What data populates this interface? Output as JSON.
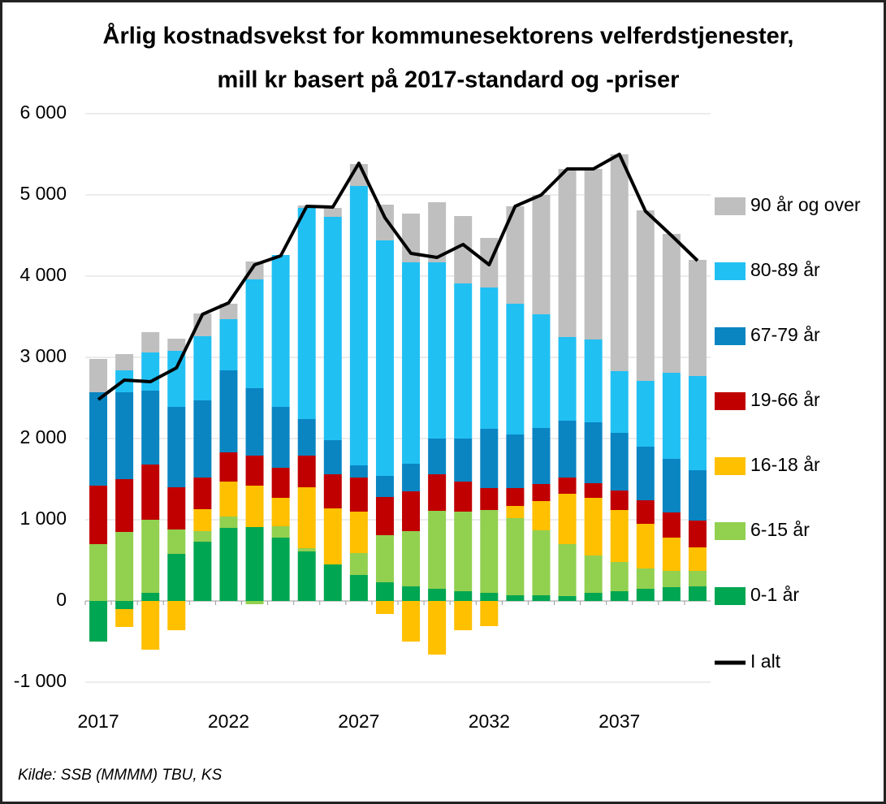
{
  "chart_data": {
    "type": "bar",
    "title": [
      "Årlig kostnadsvekst for kommunesektorens velferdstjenester,",
      "mill kr basert på 2017-standard og -priser"
    ],
    "source": "Kilde: SSB (MMMM) TBU, KS",
    "stacked": true,
    "categories": [
      "2017",
      null,
      null,
      null,
      null,
      "2022",
      null,
      null,
      null,
      null,
      "2027",
      null,
      null,
      null,
      null,
      "2032",
      null,
      null,
      null,
      null,
      "2037",
      null,
      null,
      null
    ],
    "series": [
      {
        "name": "0-1 år",
        "color": "#00a651",
        "values": [
          -500,
          -100,
          100,
          580,
          730,
          900,
          910,
          780,
          610,
          450,
          320,
          230,
          180,
          150,
          120,
          100,
          70,
          70,
          60,
          100,
          120,
          150,
          170,
          180
        ]
      },
      {
        "name": "6-15 år",
        "color": "#92d050",
        "values": [
          700,
          850,
          900,
          300,
          130,
          140,
          -40,
          140,
          40,
          0,
          270,
          580,
          680,
          960,
          980,
          1020,
          950,
          800,
          640,
          460,
          360,
          250,
          200,
          190
        ]
      },
      {
        "name": "16-18 år",
        "color": "#ffc000",
        "values": [
          0,
          -220,
          -600,
          -360,
          270,
          430,
          510,
          350,
          750,
          690,
          510,
          -160,
          -500,
          -660,
          -360,
          -310,
          150,
          360,
          620,
          710,
          640,
          550,
          410,
          290
        ]
      },
      {
        "name": "19-66 år",
        "color": "#c00000",
        "values": [
          720,
          650,
          680,
          520,
          390,
          360,
          370,
          370,
          390,
          420,
          420,
          470,
          490,
          450,
          370,
          270,
          220,
          210,
          200,
          180,
          240,
          290,
          310,
          330
        ]
      },
      {
        "name": "67-79 år",
        "color": "#0a85c2",
        "values": [
          1150,
          1070,
          910,
          990,
          950,
          1010,
          830,
          750,
          450,
          420,
          150,
          260,
          340,
          440,
          530,
          730,
          660,
          690,
          700,
          750,
          710,
          660,
          660,
          620
        ]
      },
      {
        "name": "80-89 år",
        "color": "#21c0f3",
        "values": [
          0,
          270,
          470,
          690,
          790,
          630,
          1340,
          1870,
          2600,
          2750,
          3440,
          2900,
          2480,
          2170,
          1910,
          1740,
          1610,
          1400,
          1030,
          1020,
          760,
          810,
          1060,
          1160
        ]
      },
      {
        "name": "90 år og over",
        "color": "#bfbfbf",
        "values": [
          410,
          200,
          250,
          150,
          280,
          190,
          220,
          0,
          30,
          110,
          270,
          440,
          600,
          740,
          830,
          610,
          1200,
          1470,
          2070,
          2100,
          2670,
          2100,
          1710,
          1430
        ]
      },
      {
        "name": "I alt",
        "type": "line",
        "color": "#000000",
        "values": [
          2480,
          2720,
          2700,
          2870,
          3530,
          3670,
          4140,
          4250,
          4860,
          4850,
          5390,
          4720,
          4280,
          4230,
          4390,
          4140,
          4860,
          5000,
          5320,
          5320,
          5500,
          4800,
          4500,
          4190
        ]
      }
    ],
    "ylim": [
      -1000,
      6000
    ],
    "yticks": [
      {
        "value": -1000,
        "label": "-1 000"
      },
      0,
      {
        "value": 1000,
        "label": "1 000"
      },
      {
        "value": 2000,
        "label": "2 000"
      },
      {
        "value": 3000,
        "label": "3 000"
      },
      {
        "value": 4000,
        "label": "4 000"
      },
      {
        "value": 5000,
        "label": "5 000"
      },
      {
        "value": 6000,
        "label": "6 000"
      }
    ],
    "grid": true,
    "legend": "right"
  }
}
